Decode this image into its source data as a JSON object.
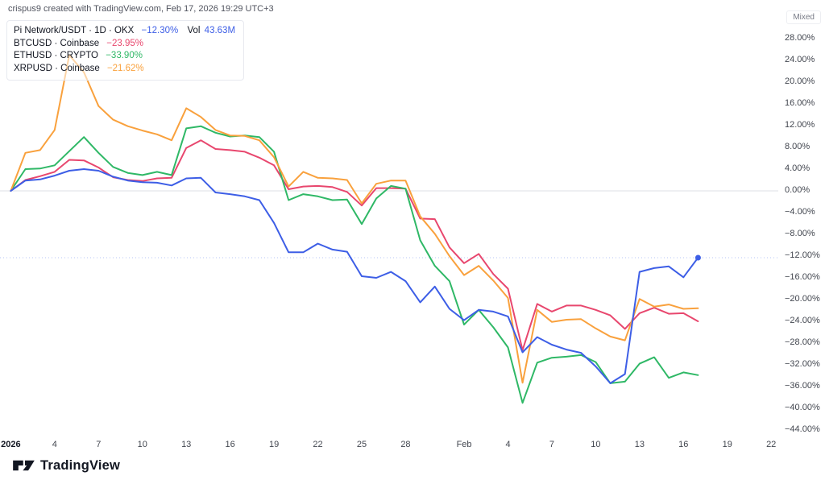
{
  "attribution": "crispus9 created with TradingView.com, Feb 17, 2026 19:29 UTC+3",
  "mixed_badge": "Mixed",
  "logo_text": "TradingView",
  "legend": {
    "main": {
      "label": "Pi Network/USDT · 1D · OKX",
      "change": "−12.30%",
      "vol_label": "Vol",
      "volume": "43.63M",
      "color": "#3d5ee6"
    },
    "compares": [
      {
        "label": "BTCUSD · Coinbase",
        "change": "−23.95%",
        "color": "#e8476e"
      },
      {
        "label": "ETHUSD · CRYPTO",
        "change": "−33.90%",
        "color": "#2fb866"
      },
      {
        "label": "XRPUSD · Coinbase",
        "change": "−21.62%",
        "color": "#f9a13d"
      }
    ]
  },
  "y_axis_labels": [
    {
      "label": "28.00%",
      "value": 28
    },
    {
      "label": "24.00%",
      "value": 24
    },
    {
      "label": "20.00%",
      "value": 20
    },
    {
      "label": "16.00%",
      "value": 16
    },
    {
      "label": "12.00%",
      "value": 12
    },
    {
      "label": "8.00%",
      "value": 8
    },
    {
      "label": "4.00%",
      "value": 4
    },
    {
      "label": "0.00%",
      "value": 0
    },
    {
      "label": "−4.00%",
      "value": -4
    },
    {
      "label": "−8.00%",
      "value": -8
    },
    {
      "label": "−12.00%",
      "value": -12
    },
    {
      "label": "−16.00%",
      "value": -16
    },
    {
      "label": "−20.00%",
      "value": -20
    },
    {
      "label": "−24.00%",
      "value": -24
    },
    {
      "label": "−28.00%",
      "value": -28
    },
    {
      "label": "−32.00%",
      "value": -32
    },
    {
      "label": "−36.00%",
      "value": -36
    },
    {
      "label": "−40.00%",
      "value": -40
    },
    {
      "label": "−44.00%",
      "value": -44
    }
  ],
  "x_axis_ticks": [
    {
      "label": "2026",
      "day": 0,
      "bold": true
    },
    {
      "label": "4",
      "day": 3
    },
    {
      "label": "7",
      "day": 6
    },
    {
      "label": "10",
      "day": 9
    },
    {
      "label": "13",
      "day": 12
    },
    {
      "label": "16",
      "day": 15
    },
    {
      "label": "19",
      "day": 18
    },
    {
      "label": "22",
      "day": 21
    },
    {
      "label": "25",
      "day": 24
    },
    {
      "label": "28",
      "day": 27
    },
    {
      "label": "Feb",
      "day": 31
    },
    {
      "label": "4",
      "day": 34
    },
    {
      "label": "7",
      "day": 37
    },
    {
      "label": "10",
      "day": 40
    },
    {
      "label": "13",
      "day": 43
    },
    {
      "label": "16",
      "day": 46
    },
    {
      "label": "19",
      "day": 49
    },
    {
      "label": "22",
      "day": 52
    }
  ],
  "chart_data": {
    "type": "line",
    "mode": "percent_change_comparison",
    "grid": false,
    "ylim": [
      -46,
      30
    ],
    "zero_line_value": 0,
    "last_value_line": -12.3,
    "legend_position": "top-left",
    "dates": [
      "Jan 1",
      "Jan 2",
      "Jan 3",
      "Jan 4",
      "Jan 5",
      "Jan 6",
      "Jan 7",
      "Jan 8",
      "Jan 9",
      "Jan 10",
      "Jan 11",
      "Jan 12",
      "Jan 13",
      "Jan 14",
      "Jan 15",
      "Jan 16",
      "Jan 17",
      "Jan 18",
      "Jan 19",
      "Jan 20",
      "Jan 21",
      "Jan 22",
      "Jan 23",
      "Jan 24",
      "Jan 25",
      "Jan 26",
      "Jan 27",
      "Jan 28",
      "Jan 29",
      "Jan 30",
      "Jan 31",
      "Feb 1",
      "Feb 2",
      "Feb 3",
      "Feb 4",
      "Feb 5",
      "Feb 6",
      "Feb 7",
      "Feb 8",
      "Feb 9",
      "Feb 10",
      "Feb 11",
      "Feb 12",
      "Feb 13",
      "Feb 14",
      "Feb 15",
      "Feb 16",
      "Feb 17"
    ],
    "series": [
      {
        "name": "BTCUSD",
        "color": "#e8476e",
        "end_marker": false,
        "values": [
          0,
          2.0,
          2.7,
          3.5,
          5.7,
          5.6,
          4.3,
          2.5,
          2.0,
          1.8,
          2.3,
          2.4,
          7.9,
          9.3,
          7.7,
          7.5,
          7.2,
          6.1,
          4.7,
          0.3,
          0.8,
          0.9,
          0.7,
          -0.2,
          -2.7,
          0.5,
          0.5,
          0.4,
          -5.1,
          -5.2,
          -10.4,
          -13.3,
          -11.6,
          -15.3,
          -18.0,
          -29.3,
          -20.8,
          -22.2,
          -21.1,
          -21.1,
          -21.9,
          -22.9,
          -25.4,
          -22.5,
          -21.5,
          -22.6,
          -22.5,
          -24.0
        ]
      },
      {
        "name": "ETHUSD",
        "color": "#2fb866",
        "end_marker": false,
        "values": [
          0,
          4.0,
          4.1,
          4.7,
          7.3,
          9.9,
          7.0,
          4.4,
          3.3,
          2.9,
          3.5,
          2.9,
          11.5,
          11.9,
          10.7,
          10.0,
          10.2,
          9.9,
          7.2,
          -1.7,
          -0.6,
          -1.0,
          -1.7,
          -1.6,
          -6.1,
          -1.4,
          0.9,
          0.4,
          -9.1,
          -13.8,
          -16.6,
          -24.6,
          -21.9,
          -25.1,
          -28.8,
          -39.0,
          -31.6,
          -30.7,
          -30.5,
          -30.2,
          -31.5,
          -35.4,
          -35.1,
          -31.8,
          -30.6,
          -34.4,
          -33.4,
          -33.9
        ]
      },
      {
        "name": "XRPUSD",
        "color": "#f9a13d",
        "end_marker": false,
        "values": [
          0,
          7.0,
          7.5,
          11.2,
          25.0,
          21.8,
          15.6,
          13.1,
          11.9,
          11.1,
          10.4,
          9.3,
          15.2,
          13.6,
          11.2,
          10.2,
          10.1,
          9.3,
          6.2,
          0.8,
          3.5,
          2.4,
          2.3,
          2.0,
          -2.3,
          1.3,
          1.9,
          1.9,
          -4.7,
          -7.9,
          -12.0,
          -15.5,
          -13.8,
          -16.5,
          -19.7,
          -35.3,
          -21.9,
          -24.1,
          -23.7,
          -23.6,
          -25.3,
          -26.8,
          -27.5,
          -19.9,
          -21.3,
          -20.9,
          -21.7,
          -21.6
        ]
      },
      {
        "name": "Pi Network/USDT",
        "color": "#3d5ee6",
        "end_marker": true,
        "values": [
          0,
          1.9,
          2.1,
          2.8,
          3.7,
          4.0,
          3.7,
          2.6,
          1.9,
          1.6,
          1.5,
          1.0,
          2.3,
          2.4,
          -0.3,
          -0.6,
          -1.0,
          -1.7,
          -5.9,
          -11.3,
          -11.3,
          -9.7,
          -10.8,
          -11.2,
          -15.7,
          -16.0,
          -14.9,
          -16.6,
          -20.5,
          -17.6,
          -21.7,
          -23.8,
          -21.9,
          -22.2,
          -23.1,
          -29.7,
          -26.9,
          -28.3,
          -29.2,
          -29.8,
          -32.3,
          -35.4,
          -33.7,
          -14.9,
          -14.2,
          -13.9,
          -15.9,
          -12.3
        ]
      }
    ]
  }
}
